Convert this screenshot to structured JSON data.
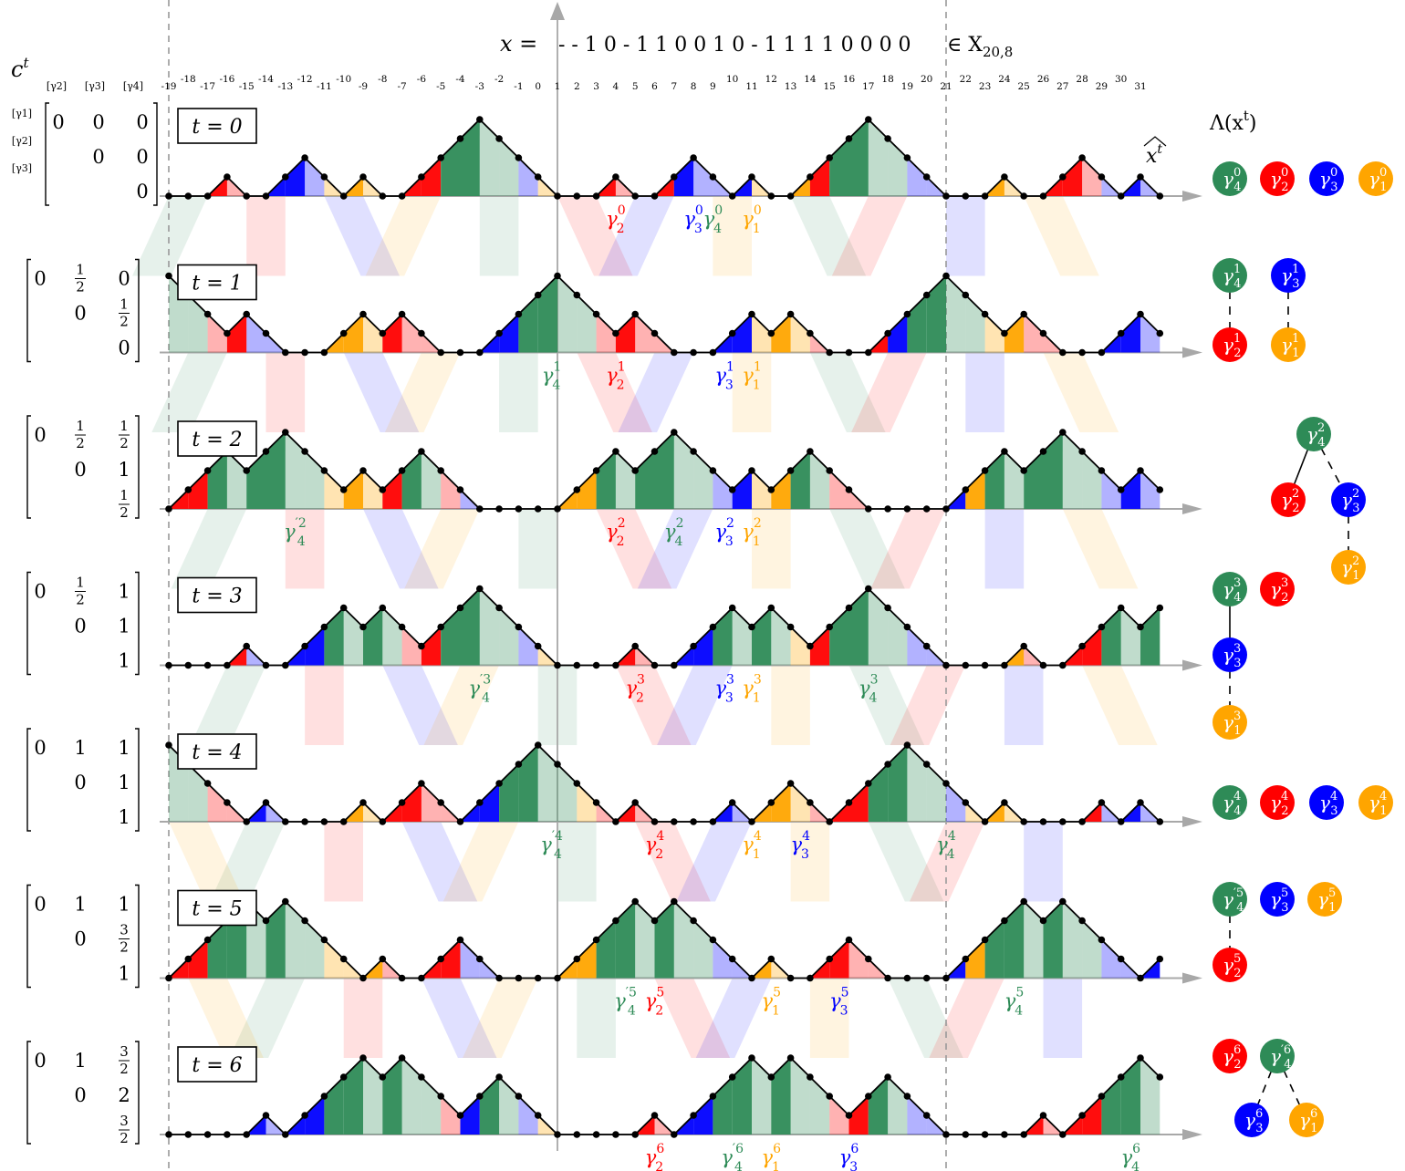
{
  "header": {
    "x_label": "x =",
    "sequence": "- - 1 0 - 1 1 0 0 1 0 - 1 1 1 1 0 0 0 0",
    "set_label": "∈ X",
    "set_subscript": "20,8"
  },
  "ticks": [
    "-19",
    "-18",
    "-17",
    "-16",
    "-15",
    "-14",
    "-13",
    "-12",
    "-11",
    "-10",
    "-9",
    "-8",
    "-7",
    "-6",
    "-5",
    "-4",
    "-3",
    "-2",
    "-1",
    "0",
    "1",
    "2",
    "3",
    "4",
    "5",
    "6",
    "7",
    "8",
    "9",
    "10",
    "11",
    "12",
    "13",
    "14",
    "15",
    "16",
    "17",
    "18",
    "19",
    "20",
    "21",
    "22",
    "23",
    "24",
    "25",
    "26",
    "27",
    "28",
    "29",
    "30",
    "31"
  ],
  "ct_label": "c",
  "ct_sup": "t",
  "matrix_col_headers": [
    "[γ2]",
    "[γ3]",
    "[γ4]"
  ],
  "matrix_row_headers": [
    "[γ1]",
    "[γ2]",
    "[γ3]"
  ],
  "lambda_title": "Λ(x",
  "lambda_sup": "t",
  "lambda_close": ")",
  "xhat_label": "x",
  "colors": {
    "green": "#2e8b57",
    "red": "#ff0000",
    "blue": "#0000ff",
    "orange": "#ffa500",
    "axis": "#a8a8a8",
    "dash": "#999999"
  },
  "rows": [
    {
      "t_label": "t = 0",
      "matrix": [
        [
          "0",
          "0",
          "0"
        ],
        [
          "",
          "0",
          "0"
        ],
        [
          "",
          "",
          "0"
        ]
      ],
      "heights": [
        0,
        0,
        0,
        1,
        0,
        0,
        1,
        2,
        1,
        0,
        1,
        0,
        0,
        1,
        2,
        3,
        4,
        3,
        2,
        1,
        0,
        0,
        0,
        1,
        0,
        0,
        1,
        2,
        1,
        0,
        1,
        0,
        0,
        1,
        2,
        3,
        4,
        3,
        2,
        1,
        0,
        0,
        0,
        1,
        0,
        0,
        1,
        2,
        1,
        0,
        1,
        0
      ],
      "labels": [
        {
          "s": "γ",
          "sub": "4",
          "sup": "0",
          "x": 8.0,
          "c": "green"
        },
        {
          "s": "γ",
          "sub": "2",
          "sup": "0",
          "x": 3.0,
          "c": "red"
        },
        {
          "s": "γ",
          "sub": "3",
          "sup": "0",
          "x": 7.0,
          "c": "blue"
        },
        {
          "s": "γ",
          "sub": "1",
          "sup": "0",
          "x": 10.0,
          "c": "orange"
        }
      ]
    },
    {
      "t_label": "t = 1",
      "matrix": [
        [
          "0",
          "1/2",
          "0"
        ],
        [
          "",
          "0",
          "1/2"
        ],
        [
          "",
          "",
          "0"
        ]
      ],
      "heights": [
        4,
        3,
        2,
        1,
        2,
        1,
        0,
        0,
        0,
        1,
        2,
        1,
        2,
        1,
        0,
        0,
        0,
        1,
        2,
        3,
        4,
        3,
        2,
        1,
        2,
        1,
        0,
        0,
        0,
        1,
        2,
        1,
        2,
        1,
        0,
        0,
        0,
        1,
        2,
        3,
        4,
        3,
        2,
        1,
        2,
        1,
        0,
        0,
        0,
        1,
        2,
        1
      ],
      "labels": [
        {
          "s": "γ",
          "sub": "4",
          "sup": "1",
          "x": -0.3,
          "c": "green"
        },
        {
          "s": "γ",
          "sub": "2",
          "sup": "1",
          "x": 3.0,
          "c": "red"
        },
        {
          "s": "γ",
          "sub": "3",
          "sup": "1",
          "x": 8.6,
          "c": "blue"
        },
        {
          "s": "γ",
          "sub": "1",
          "sup": "1",
          "x": 10.0,
          "c": "orange"
        }
      ]
    },
    {
      "t_label": "t = 2",
      "matrix": [
        [
          "0",
          "1/2",
          "1/2"
        ],
        [
          "",
          "0",
          "1"
        ],
        [
          "",
          "",
          "1/2"
        ]
      ],
      "heights": [
        0,
        1,
        2,
        3,
        2,
        3,
        4,
        3,
        2,
        1,
        2,
        1,
        2,
        3,
        2,
        1,
        0,
        0,
        0,
        0,
        0,
        1,
        2,
        3,
        2,
        3,
        4,
        3,
        2,
        1,
        2,
        1,
        2,
        3,
        2,
        1,
        0,
        0,
        0,
        0,
        0,
        1,
        2,
        3,
        2,
        3,
        4,
        3,
        2,
        1,
        2,
        1
      ],
      "labels": [
        {
          "s": "γ",
          "sub": "4",
          "sup": "′2",
          "x": -13.5,
          "c": "green"
        },
        {
          "s": "γ",
          "sub": "2",
          "sup": "2",
          "x": 3.0,
          "c": "red"
        },
        {
          "s": "γ",
          "sub": "4",
          "sup": "2",
          "x": 6.0,
          "c": "green"
        },
        {
          "s": "γ",
          "sub": "3",
          "sup": "2",
          "x": 8.6,
          "c": "blue"
        },
        {
          "s": "γ",
          "sub": "1",
          "sup": "2",
          "x": 10.0,
          "c": "orange"
        }
      ]
    },
    {
      "t_label": "t = 3",
      "matrix": [
        [
          "0",
          "1/2",
          "1"
        ],
        [
          "",
          "0",
          "1"
        ],
        [
          "",
          "",
          "1"
        ]
      ],
      "heights": [
        0,
        0,
        0,
        0,
        1,
        0,
        0,
        1,
        2,
        3,
        2,
        3,
        2,
        1,
        2,
        3,
        4,
        3,
        2,
        1,
        0,
        0,
        0,
        0,
        1,
        0,
        0,
        1,
        2,
        3,
        2,
        3,
        2,
        1,
        2,
        3,
        4,
        3,
        2,
        1,
        0,
        0,
        0,
        0,
        1,
        0,
        0,
        1,
        2,
        3,
        2,
        3
      ],
      "labels": [
        {
          "s": "γ",
          "sub": "4",
          "sup": "′3",
          "x": -4.0,
          "c": "green"
        },
        {
          "s": "γ",
          "sub": "2",
          "sup": "3",
          "x": 4.0,
          "c": "red"
        },
        {
          "s": "γ",
          "sub": "3",
          "sup": "3",
          "x": 8.6,
          "c": "blue"
        },
        {
          "s": "γ",
          "sub": "1",
          "sup": "3",
          "x": 10.0,
          "c": "orange"
        },
        {
          "s": "γ",
          "sub": "4",
          "sup": "3",
          "x": 16.0,
          "c": "green"
        }
      ]
    },
    {
      "t_label": "t = 4",
      "matrix": [
        [
          "0",
          "1",
          "1"
        ],
        [
          "",
          "0",
          "1"
        ],
        [
          "",
          "",
          "1"
        ]
      ],
      "heights": [
        4,
        3,
        2,
        1,
        0,
        1,
        0,
        0,
        0,
        0,
        1,
        0,
        1,
        2,
        1,
        0,
        1,
        2,
        3,
        4,
        3,
        2,
        1,
        0,
        1,
        0,
        0,
        0,
        0,
        1,
        0,
        1,
        2,
        1,
        0,
        1,
        2,
        3,
        4,
        3,
        2,
        1,
        0,
        1,
        0,
        0,
        0,
        0,
        1,
        0,
        1,
        0
      ],
      "labels": [
        {
          "s": "γ",
          "sub": "4",
          "sup": "′4",
          "x": -0.3,
          "c": "green"
        },
        {
          "s": "γ",
          "sub": "2",
          "sup": "4",
          "x": 5.0,
          "c": "red"
        },
        {
          "s": "γ",
          "sub": "1",
          "sup": "4",
          "x": 10.0,
          "c": "orange"
        },
        {
          "s": "γ",
          "sub": "3",
          "sup": "4",
          "x": 12.5,
          "c": "blue"
        },
        {
          "s": "γ",
          "sub": "4",
          "sup": "4",
          "x": 20.0,
          "c": "green"
        }
      ]
    },
    {
      "t_label": "t = 5",
      "matrix": [
        [
          "0",
          "1",
          "1"
        ],
        [
          "",
          "0",
          "3/2"
        ],
        [
          "",
          "",
          "1"
        ]
      ],
      "heights": [
        0,
        1,
        2,
        3,
        4,
        3,
        4,
        3,
        2,
        1,
        0,
        1,
        0,
        0,
        1,
        2,
        1,
        0,
        0,
        0,
        0,
        1,
        2,
        3,
        4,
        3,
        4,
        3,
        2,
        1,
        0,
        1,
        0,
        0,
        1,
        2,
        1,
        0,
        0,
        0,
        0,
        1,
        2,
        3,
        4,
        3,
        4,
        3,
        2,
        1,
        0,
        1
      ],
      "labels": [
        {
          "s": "γ",
          "sub": "4",
          "sup": "′5",
          "x": 3.5,
          "c": "green"
        },
        {
          "s": "γ",
          "sub": "2",
          "sup": "5",
          "x": 5.0,
          "c": "red"
        },
        {
          "s": "γ",
          "sub": "1",
          "sup": "5",
          "x": 11.0,
          "c": "orange"
        },
        {
          "s": "γ",
          "sub": "3",
          "sup": "5",
          "x": 14.5,
          "c": "blue"
        },
        {
          "s": "γ",
          "sub": "4",
          "sup": "5",
          "x": 23.5,
          "c": "green"
        }
      ]
    },
    {
      "t_label": "t = 6",
      "matrix": [
        [
          "0",
          "1",
          "3/2"
        ],
        [
          "",
          "0",
          "2"
        ],
        [
          "",
          "",
          "3/2"
        ]
      ],
      "heights": [
        0,
        0,
        0,
        0,
        0,
        1,
        0,
        1,
        2,
        3,
        4,
        3,
        4,
        3,
        2,
        1,
        2,
        3,
        2,
        1,
        0,
        0,
        0,
        0,
        0,
        1,
        0,
        1,
        2,
        3,
        4,
        3,
        4,
        3,
        2,
        1,
        2,
        3,
        2,
        1,
        0,
        0,
        0,
        0,
        0,
        1,
        0,
        1,
        2,
        3,
        4,
        3
      ],
      "labels": [
        {
          "s": "γ",
          "sub": "2",
          "sup": "6",
          "x": 5.0,
          "c": "red"
        },
        {
          "s": "γ",
          "sub": "4",
          "sup": "′6",
          "x": 9.0,
          "c": "green"
        },
        {
          "s": "γ",
          "sub": "1",
          "sup": "6",
          "x": 11.0,
          "c": "orange"
        },
        {
          "s": "γ",
          "sub": "3",
          "sup": "6",
          "x": 15.0,
          "c": "blue"
        },
        {
          "s": "γ",
          "sub": "4",
          "sup": "6",
          "x": 29.5,
          "c": "green"
        }
      ]
    }
  ],
  "trees": [
    {
      "nodes": [
        {
          "id": "a",
          "sub": "4",
          "sup": "0",
          "c": "green"
        },
        {
          "id": "b",
          "sub": "2",
          "sup": "0",
          "c": "red"
        },
        {
          "id": "c",
          "sub": "3",
          "sup": "0",
          "c": "blue"
        },
        {
          "id": "d",
          "sub": "1",
          "sup": "0",
          "c": "orange"
        }
      ],
      "edges": []
    },
    {
      "nodes": [
        {
          "id": "a",
          "sub": "4",
          "sup": "1",
          "c": "green"
        },
        {
          "id": "b",
          "sub": "2",
          "sup": "1",
          "c": "red"
        },
        {
          "id": "c",
          "sub": "3",
          "sup": "1",
          "c": "blue"
        },
        {
          "id": "d",
          "sub": "1",
          "sup": "1",
          "c": "orange"
        }
      ],
      "edges": [
        {
          "from": "a",
          "to": "b",
          "dash": true
        },
        {
          "from": "c",
          "to": "d",
          "dash": true
        }
      ]
    },
    {
      "nodes": [
        {
          "id": "a",
          "sub": "4",
          "sup": "2",
          "c": "green"
        },
        {
          "id": "b",
          "sub": "2",
          "sup": "2",
          "c": "red"
        },
        {
          "id": "c",
          "sub": "3",
          "sup": "2",
          "c": "blue"
        },
        {
          "id": "d",
          "sub": "1",
          "sup": "2",
          "c": "orange"
        }
      ],
      "edges": [
        {
          "from": "a",
          "to": "b",
          "dash": false
        },
        {
          "from": "a",
          "to": "c",
          "dash": true
        },
        {
          "from": "c",
          "to": "d",
          "dash": true
        }
      ]
    },
    {
      "nodes": [
        {
          "id": "a",
          "sub": "4",
          "sup": "3",
          "c": "green"
        },
        {
          "id": "b",
          "sub": "2",
          "sup": "3",
          "c": "red"
        },
        {
          "id": "c",
          "sub": "3",
          "sup": "3",
          "c": "blue"
        },
        {
          "id": "d",
          "sub": "1",
          "sup": "3",
          "c": "orange"
        }
      ],
      "edges": [
        {
          "from": "a",
          "to": "c",
          "dash": false
        },
        {
          "from": "c",
          "to": "d",
          "dash": true
        }
      ]
    },
    {
      "nodes": [
        {
          "id": "a",
          "sub": "4",
          "sup": "4",
          "c": "green"
        },
        {
          "id": "b",
          "sub": "2",
          "sup": "4",
          "c": "red"
        },
        {
          "id": "c",
          "sub": "3",
          "sup": "4",
          "c": "blue"
        },
        {
          "id": "d",
          "sub": "1",
          "sup": "4",
          "c": "orange"
        }
      ],
      "edges": []
    },
    {
      "nodes": [
        {
          "id": "a",
          "sub": "4",
          "sup": "′5",
          "c": "green"
        },
        {
          "id": "b",
          "sub": "3",
          "sup": "5",
          "c": "blue"
        },
        {
          "id": "c",
          "sub": "1",
          "sup": "5",
          "c": "orange"
        },
        {
          "id": "d",
          "sub": "2",
          "sup": "5",
          "c": "red"
        }
      ],
      "edges": [
        {
          "from": "a",
          "to": "d",
          "dash": true
        }
      ]
    },
    {
      "nodes": [
        {
          "id": "a",
          "sub": "2",
          "sup": "6",
          "c": "red"
        },
        {
          "id": "b",
          "sub": "4",
          "sup": "′6",
          "c": "green"
        },
        {
          "id": "c",
          "sub": "3",
          "sup": "6",
          "c": "blue"
        },
        {
          "id": "d",
          "sub": "1",
          "sup": "6",
          "c": "orange"
        }
      ],
      "edges": [
        {
          "from": "b",
          "to": "c",
          "dash": true
        },
        {
          "from": "b",
          "to": "d",
          "dash": true
        }
      ]
    }
  ]
}
